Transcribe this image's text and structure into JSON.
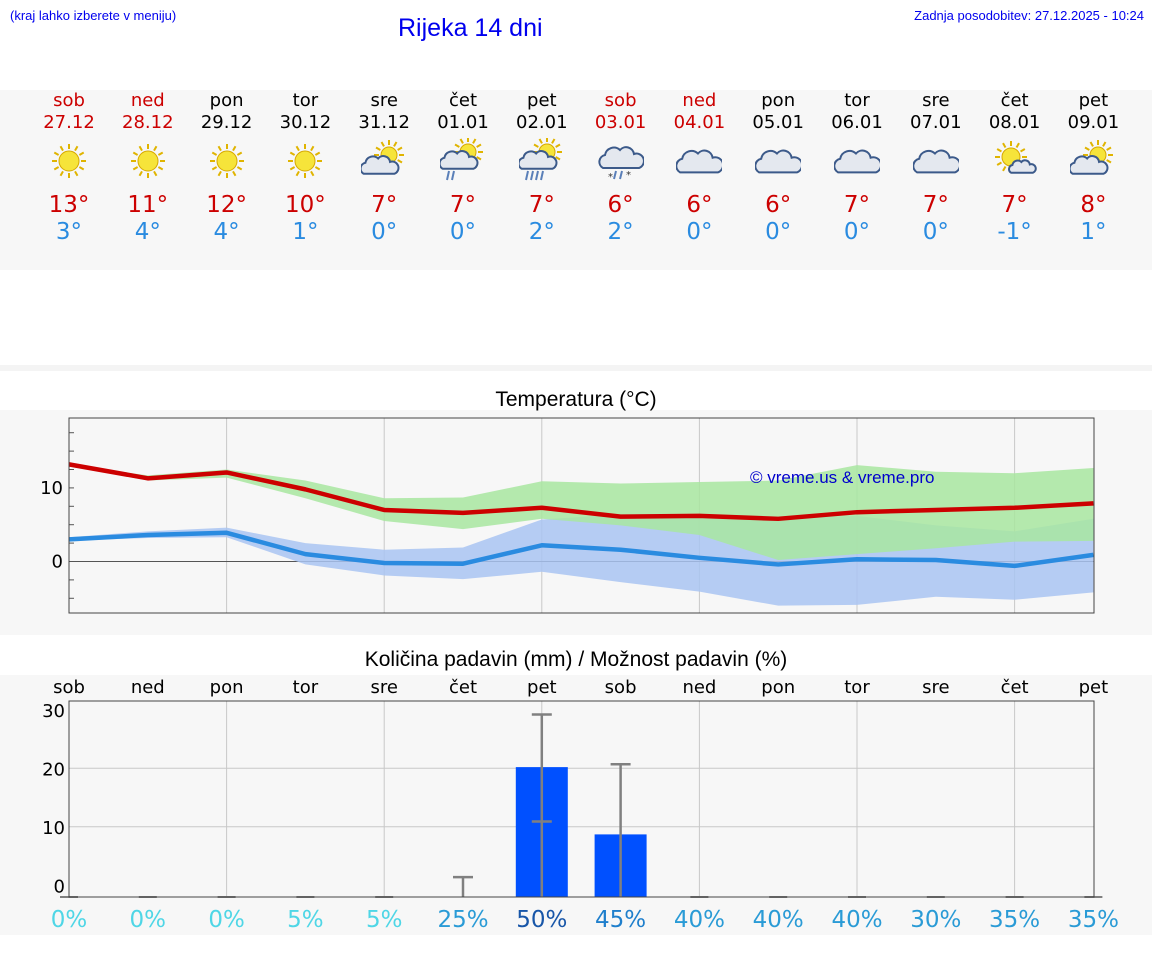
{
  "header": {
    "hint": "(kraj lahko izberete v meniju)",
    "title": "Rijeka 14 dni",
    "updated": "Zadnja posodobitev: 27.12.2025 - 10:24"
  },
  "colors": {
    "weekend": "#cc0000",
    "weekday": "#000000",
    "tmax": "#cc0000",
    "tmin": "#2a8be0",
    "max_band": "#a8e6a0",
    "min_band": "#a9c4f2",
    "bar": "#0050ff",
    "credit": "#0000cc"
  },
  "forecast": {
    "days": [
      {
        "day": "sob",
        "date": "27.12",
        "weekend": true,
        "icon": "sun-icon",
        "tmax": "13°",
        "tmin": "3°"
      },
      {
        "day": "ned",
        "date": "28.12",
        "weekend": true,
        "icon": "sun-icon",
        "tmax": "11°",
        "tmin": "4°"
      },
      {
        "day": "pon",
        "date": "29.12",
        "weekend": false,
        "icon": "sun-icon",
        "tmax": "12°",
        "tmin": "4°"
      },
      {
        "day": "tor",
        "date": "30.12",
        "weekend": false,
        "icon": "sun-icon",
        "tmax": "10°",
        "tmin": "1°"
      },
      {
        "day": "sre",
        "date": "31.12",
        "weekend": false,
        "icon": "partly-cloudy-icon",
        "tmax": "7°",
        "tmin": "0°"
      },
      {
        "day": "čet",
        "date": "01.01",
        "weekend": false,
        "icon": "partly-cloudy-light-rain-icon",
        "tmax": "7°",
        "tmin": "0°"
      },
      {
        "day": "pet",
        "date": "02.01",
        "weekend": false,
        "icon": "partly-cloudy-rain-icon",
        "tmax": "7°",
        "tmin": "2°"
      },
      {
        "day": "sob",
        "date": "03.01",
        "weekend": true,
        "icon": "cloudy-sleet-icon",
        "tmax": "6°",
        "tmin": "2°"
      },
      {
        "day": "ned",
        "date": "04.01",
        "weekend": true,
        "icon": "cloudy-icon",
        "tmax": "6°",
        "tmin": "0°"
      },
      {
        "day": "pon",
        "date": "05.01",
        "weekend": false,
        "icon": "cloudy-icon",
        "tmax": "6°",
        "tmin": "0°"
      },
      {
        "day": "tor",
        "date": "06.01",
        "weekend": false,
        "icon": "cloudy-icon",
        "tmax": "7°",
        "tmin": "0°"
      },
      {
        "day": "sre",
        "date": "07.01",
        "weekend": false,
        "icon": "cloudy-icon",
        "tmax": "7°",
        "tmin": "0°"
      },
      {
        "day": "čet",
        "date": "08.01",
        "weekend": false,
        "icon": "sun-small-cloud-icon",
        "tmax": "7°",
        "tmin": "-1°"
      },
      {
        "day": "pet",
        "date": "09.01",
        "weekend": false,
        "icon": "partly-cloudy-icon",
        "tmax": "8°",
        "tmin": "1°"
      }
    ]
  },
  "chart_data": [
    {
      "type": "line",
      "title": "Temperatura (°C)",
      "credit": "© vreme.us & vreme.pro",
      "ylim": [
        -7,
        19.5
      ],
      "yticks": [
        0,
        10
      ],
      "ytick_labels": [
        "0",
        "10"
      ],
      "grid": true,
      "x": [
        0,
        1,
        2,
        3,
        4,
        5,
        6,
        7,
        8,
        9,
        10,
        11,
        12,
        13
      ],
      "series": [
        {
          "name": "max",
          "values": [
            13.2,
            11.3,
            12.1,
            9.8,
            7.0,
            6.6,
            7.3,
            6.1,
            6.2,
            5.8,
            6.7,
            7.0,
            7.3,
            7.9
          ]
        },
        {
          "name": "min",
          "values": [
            3.0,
            3.6,
            3.9,
            1.0,
            -0.2,
            -0.3,
            2.2,
            1.6,
            0.5,
            -0.4,
            0.3,
            0.2,
            -0.6,
            0.9
          ]
        }
      ],
      "max_band_high": [
        13.2,
        11.7,
        12.5,
        11.0,
        8.6,
        8.7,
        10.9,
        10.6,
        10.8,
        11.0,
        13.1,
        12.2,
        12.0,
        12.7
      ],
      "max_band_low": [
        13.0,
        11.0,
        11.4,
        8.6,
        5.5,
        4.4,
        5.8,
        4.9,
        3.6,
        0.2,
        1.0,
        1.8,
        2.7,
        2.8
      ],
      "min_band_high": [
        3.3,
        4.1,
        4.6,
        2.5,
        1.6,
        1.9,
        5.7,
        6.4,
        6.4,
        5.8,
        6.2,
        4.9,
        4.1,
        5.8
      ],
      "min_band_low": [
        2.8,
        3.2,
        3.3,
        -0.4,
        -1.9,
        -2.4,
        -1.4,
        -2.8,
        -4.1,
        -6.0,
        -5.9,
        -4.8,
        -5.2,
        -4.2
      ]
    },
    {
      "type": "bar",
      "title": "Količina padavin (mm) / Možnost padavin (%)",
      "categories": [
        "sob",
        "ned",
        "pon",
        "tor",
        "sre",
        "čet",
        "pet",
        "sob",
        "ned",
        "pon",
        "tor",
        "sre",
        "čet",
        "pet"
      ],
      "values": [
        0,
        0,
        0,
        0,
        0,
        0,
        20.2,
        8.7,
        0,
        0,
        0,
        0,
        0,
        0
      ],
      "error_low": [
        0,
        0,
        0,
        0,
        0,
        0,
        10.9,
        0,
        0,
        0,
        0,
        0,
        0,
        0
      ],
      "error_high": [
        0,
        0,
        0,
        0.1,
        0.1,
        1.4,
        29.2,
        20.7,
        0,
        0,
        0,
        0,
        0,
        0
      ],
      "ylim": [
        -2,
        31.5
      ],
      "yticks": [
        0,
        10,
        20,
        30
      ],
      "ytick_labels": [
        "0",
        "10",
        "20",
        "30"
      ],
      "probability": [
        "0%",
        "0%",
        "0%",
        "5%",
        "5%",
        "25%",
        "50%",
        "45%",
        "40%",
        "40%",
        "40%",
        "30%",
        "35%",
        "35%"
      ],
      "probability_values": [
        0,
        0,
        0,
        5,
        5,
        25,
        50,
        45,
        40,
        40,
        40,
        30,
        35,
        35
      ]
    }
  ]
}
